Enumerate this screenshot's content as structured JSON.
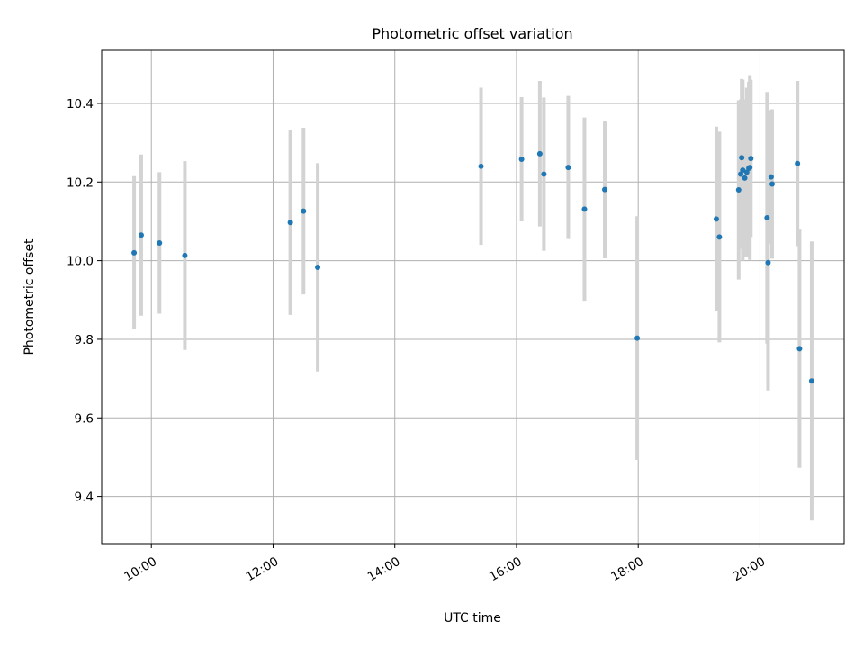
{
  "chart_data": {
    "type": "scatter",
    "title": "Photometric offset variation",
    "xlabel": "UTC time",
    "ylabel": "Photometric offset",
    "x_ticks": [
      "10:00",
      "12:00",
      "14:00",
      "16:00",
      "18:00",
      "20:00"
    ],
    "y_ticks": [
      "9.4",
      "9.6",
      "9.8",
      "10.0",
      "10.2",
      "10.4"
    ],
    "xlim": [
      "09:11",
      "21:23"
    ],
    "ylim": [
      9.28,
      10.535
    ],
    "grid": true,
    "colors": {
      "points": "#1f77b4",
      "errorbars": "#d3d3d3",
      "grid": "#b0b0b0"
    },
    "points": [
      {
        "t": "09:43",
        "y": 10.02,
        "err": 0.195
      },
      {
        "t": "09:50",
        "y": 10.065,
        "err": 0.205
      },
      {
        "t": "10:08",
        "y": 10.045,
        "err": 0.18
      },
      {
        "t": "10:33",
        "y": 10.013,
        "err": 0.24
      },
      {
        "t": "12:17",
        "y": 10.097,
        "err": 0.235
      },
      {
        "t": "12:30",
        "y": 10.126,
        "err": 0.212
      },
      {
        "t": "12:44",
        "y": 9.983,
        "err": 0.265
      },
      {
        "t": "15:25",
        "y": 10.24,
        "err": 0.2
      },
      {
        "t": "16:05",
        "y": 10.258,
        "err": 0.158
      },
      {
        "t": "16:23",
        "y": 10.272,
        "err": 0.185
      },
      {
        "t": "16:27",
        "y": 10.22,
        "err": 0.195
      },
      {
        "t": "16:51",
        "y": 10.237,
        "err": 0.182
      },
      {
        "t": "17:07",
        "y": 10.131,
        "err": 0.233
      },
      {
        "t": "17:27",
        "y": 10.181,
        "err": 0.175
      },
      {
        "t": "17:59",
        "y": 9.803,
        "err": 0.31
      },
      {
        "t": "19:17",
        "y": 10.106,
        "err": 0.235
      },
      {
        "t": "19:20",
        "y": 10.06,
        "err": 0.268
      },
      {
        "t": "19:39",
        "y": 10.18,
        "err": 0.228
      },
      {
        "t": "19:41",
        "y": 10.22,
        "err": 0.19
      },
      {
        "t": "19:42",
        "y": 10.262,
        "err": 0.2
      },
      {
        "t": "19:43",
        "y": 10.23,
        "err": 0.23
      },
      {
        "t": "19:45",
        "y": 10.21,
        "err": 0.2
      },
      {
        "t": "19:47",
        "y": 10.225,
        "err": 0.215
      },
      {
        "t": "19:49",
        "y": 10.235,
        "err": 0.22
      },
      {
        "t": "19:50",
        "y": 10.237,
        "err": 0.235
      },
      {
        "t": "19:51",
        "y": 10.26,
        "err": 0.2
      },
      {
        "t": "20:07",
        "y": 10.109,
        "err": 0.32
      },
      {
        "t": "20:08",
        "y": 9.995,
        "err": 0.325
      },
      {
        "t": "20:11",
        "y": 10.213,
        "err": 0.17
      },
      {
        "t": "20:12",
        "y": 10.195,
        "err": 0.19
      },
      {
        "t": "20:37",
        "y": 10.247,
        "err": 0.21
      },
      {
        "t": "20:39",
        "y": 9.776,
        "err": 0.303
      },
      {
        "t": "20:51",
        "y": 9.694,
        "err": 0.355
      }
    ]
  }
}
